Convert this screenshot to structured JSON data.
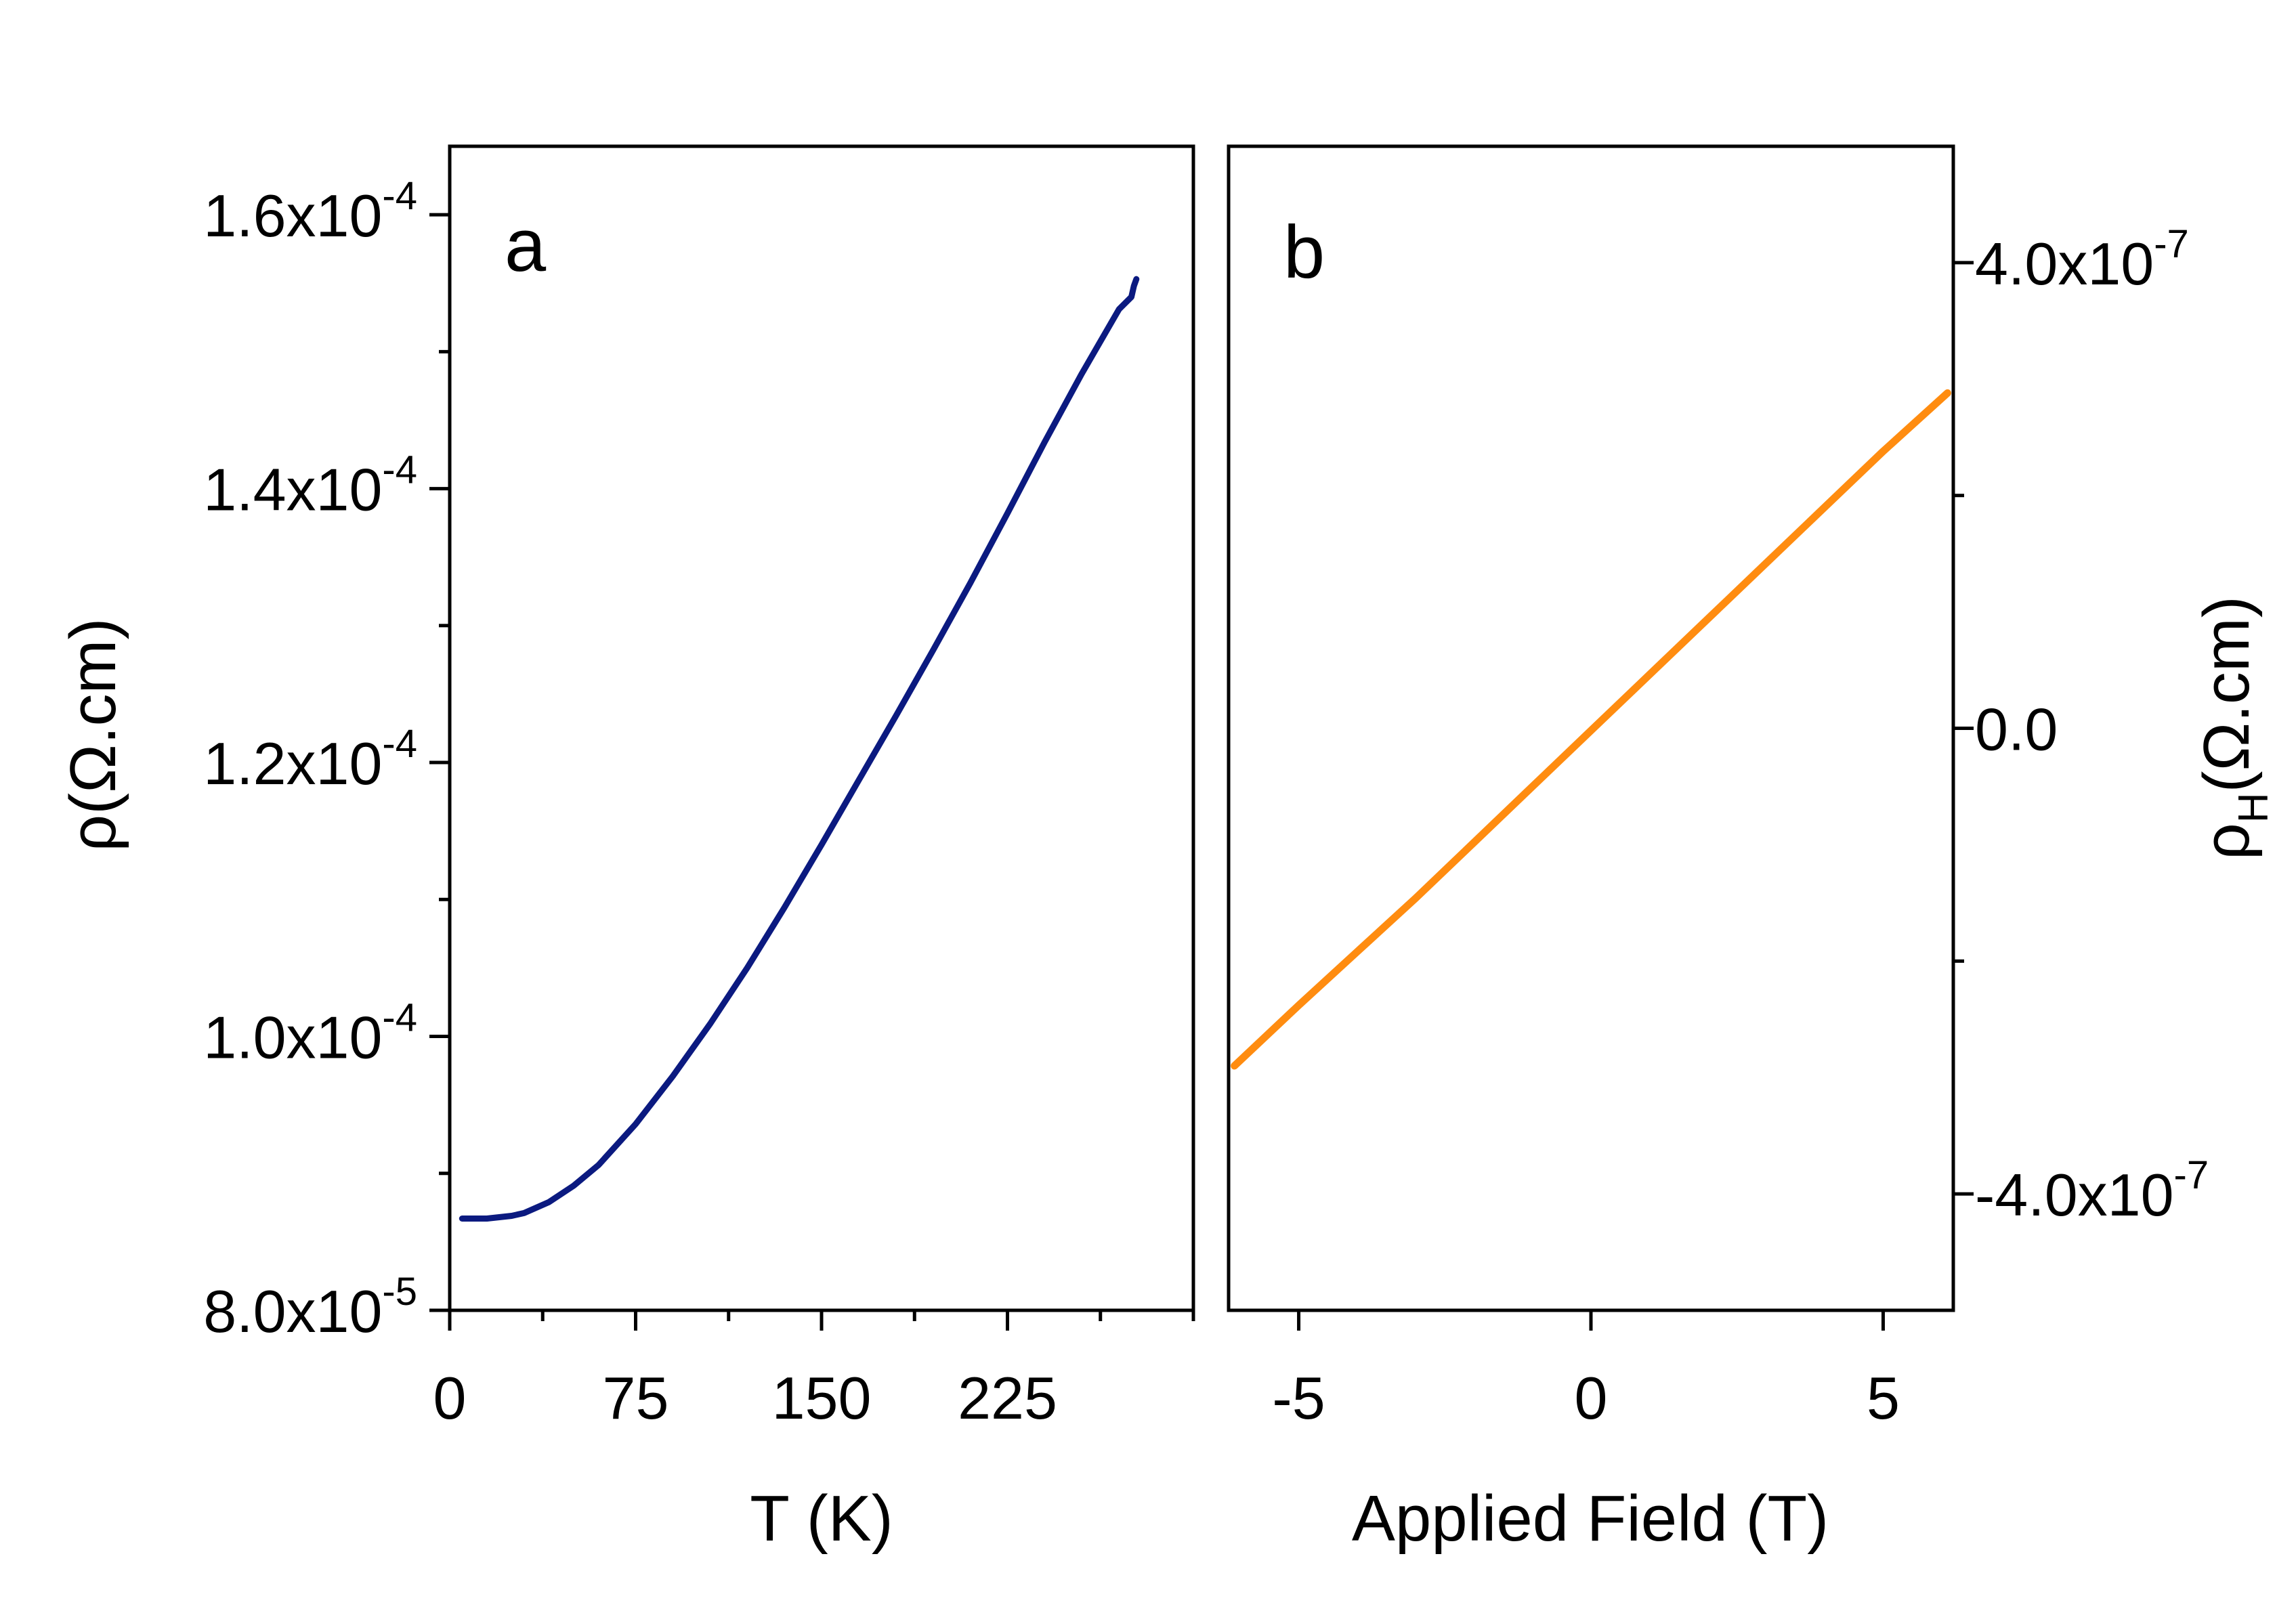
{
  "chart_data": [
    {
      "panel": "a",
      "type": "line",
      "panel_label": "a",
      "xlabel": "T (K)",
      "ylabel_base": "ρ(Ω.cm)",
      "xlim": [
        0,
        300
      ],
      "ylim": [
        8e-05,
        0.000165
      ],
      "x_ticks": [
        {
          "value": 0,
          "label": "0"
        },
        {
          "value": 75,
          "label": "75"
        },
        {
          "value": 150,
          "label": "150"
        },
        {
          "value": 225,
          "label": "225"
        }
      ],
      "y_ticks": [
        {
          "value": 8e-05,
          "mantissa": "8.0x10",
          "exponent": "-5"
        },
        {
          "value": 0.0001,
          "mantissa": "1.0x10",
          "exponent": "-4"
        },
        {
          "value": 0.00012,
          "mantissa": "1.2x10",
          "exponent": "-4"
        },
        {
          "value": 0.00014,
          "mantissa": "1.4x10",
          "exponent": "-4"
        },
        {
          "value": 0.00016,
          "mantissa": "1.6x10",
          "exponent": "-4"
        }
      ],
      "series": [
        {
          "name": "rho",
          "color": "#0b1a80",
          "x": [
            5,
            10,
            15,
            20,
            25,
            30,
            40,
            50,
            60,
            75,
            90,
            105,
            120,
            135,
            150,
            165,
            180,
            195,
            210,
            225,
            240,
            255,
            270,
            275,
            276,
            277
          ],
          "y": [
            8.67e-05,
            8.67e-05,
            8.67e-05,
            8.68e-05,
            8.69e-05,
            8.71e-05,
            8.79e-05,
            8.91e-05,
            9.06e-05,
            9.36e-05,
            9.71e-05,
            0.0001009,
            0.000105,
            0.0001094,
            0.000114,
            0.0001187,
            0.0001234,
            0.0001282,
            0.0001331,
            0.0001382,
            0.0001434,
            0.0001484,
            0.0001531,
            0.000154,
            0.0001548,
            0.0001553
          ]
        }
      ]
    },
    {
      "panel": "b",
      "type": "line",
      "panel_label": "b",
      "xlabel": "Applied Field (T)",
      "ylabel_base": "ρ",
      "ylabel_sub": "H",
      "ylabel_rest": "(Ω.cm)",
      "xlim": [
        -6.2,
        6.2
      ],
      "ylim": [
        -5e-07,
        5e-07
      ],
      "x_ticks": [
        {
          "value": -5,
          "label": "-5"
        },
        {
          "value": 0,
          "label": "0"
        },
        {
          "value": 5,
          "label": "5"
        }
      ],
      "y_ticks": [
        {
          "value": -4e-07,
          "mantissa": "-4.0x10",
          "exponent": "-7"
        },
        {
          "value": 0,
          "mantissa": "0.0",
          "exponent": ""
        },
        {
          "value": 4e-07,
          "mantissa": "4.0x10",
          "exponent": "-7"
        }
      ],
      "series": [
        {
          "name": "rho_H",
          "color": "#ff8c10",
          "x": [
            -6.1,
            -5,
            -4,
            -3,
            -2,
            -1,
            0,
            1,
            2,
            3,
            4,
            5,
            6.1
          ],
          "y": [
            -2.9e-07,
            -2.38e-07,
            -1.92e-07,
            -1.46e-07,
            -9.8e-08,
            -5e-08,
            -2e-09,
            4.6e-08,
            9.4e-08,
            1.42e-07,
            1.9e-07,
            2.38e-07,
            2.88e-07
          ]
        }
      ]
    }
  ]
}
